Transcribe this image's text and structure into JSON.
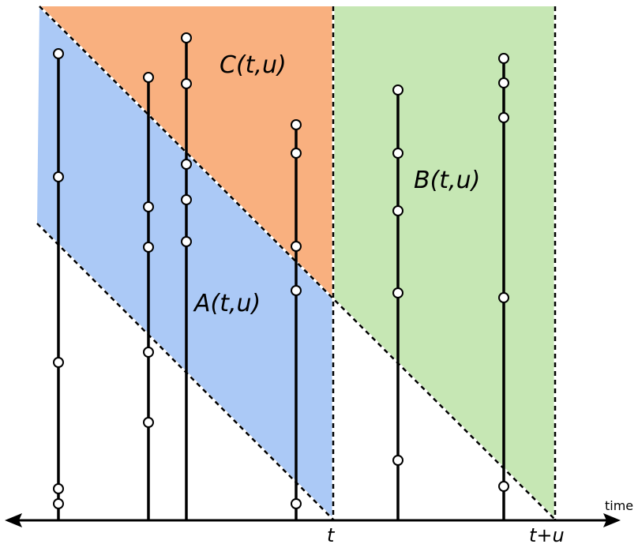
{
  "regions": {
    "A": {
      "label": "A(t,u)",
      "color": "#abc9f6"
    },
    "B": {
      "label": "B(t,u)",
      "color": "#c6e7b4"
    },
    "C": {
      "label": "C(t,u)",
      "color": "#f9b07f"
    }
  },
  "axis": {
    "time_label": "time",
    "t_label": "t",
    "t_plus_u_label": "t+u"
  },
  "icons": {
    "left_arrow": "arrow-left-icon",
    "right_arrow": "arrow-right-icon"
  }
}
